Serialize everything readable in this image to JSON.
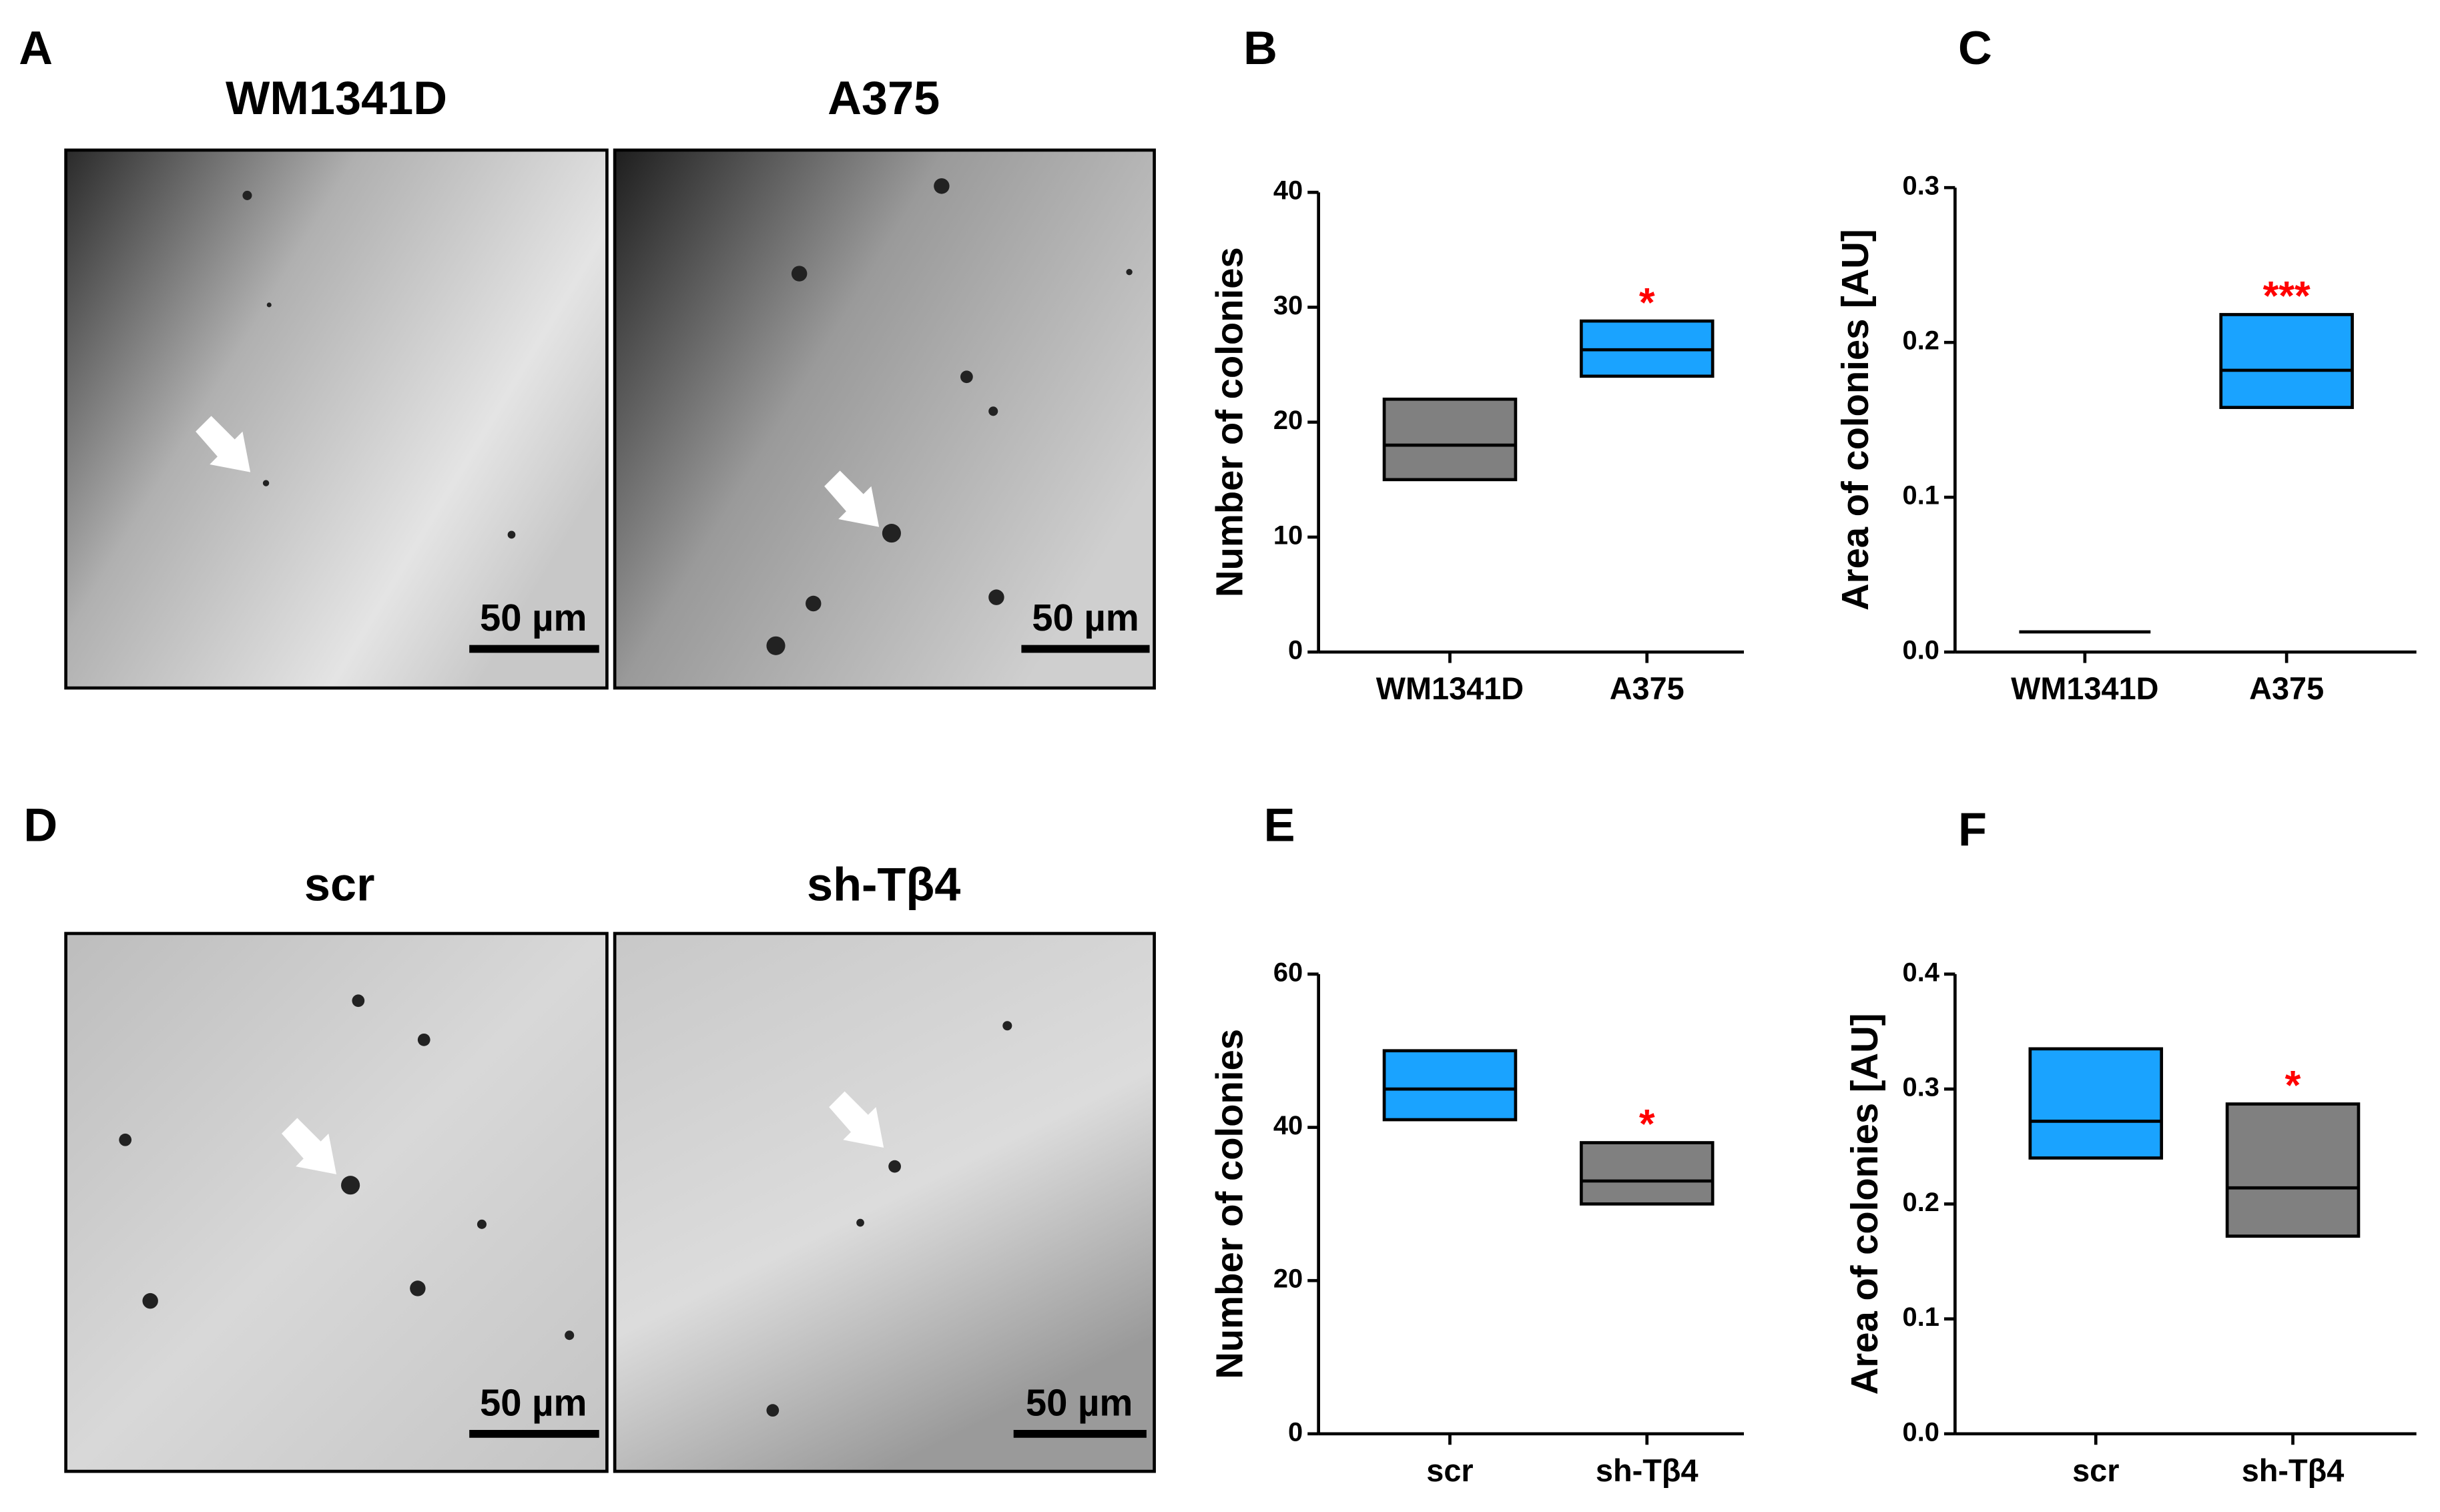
{
  "images": [
    {
      "panel_label": "A",
      "panels": [
        {
          "title": "WM1341D",
          "scale_bar": "50 µm"
        },
        {
          "title": "A375",
          "scale_bar": "50 µm"
        }
      ]
    },
    {
      "panel_label": "D",
      "panels": [
        {
          "title": "scr",
          "scale_bar": "50 µm"
        },
        {
          "title": "sh-Tβ4",
          "scale_bar": "50 µm"
        }
      ]
    }
  ],
  "chart_data": [
    {
      "type": "box",
      "panel_label": "B",
      "y_label": "Number of colonies",
      "categories": [
        "WM1341D",
        "A375"
      ],
      "low": [
        15,
        24
      ],
      "median": [
        18,
        26.3
      ],
      "high": [
        22,
        28.8
      ],
      "colors": [
        "#808080",
        "#1aa3ff"
      ],
      "annotations": [
        null,
        "*"
      ],
      "annotation_color": "#ff0000",
      "ylim": [
        0,
        40
      ],
      "yticks": [
        0,
        10,
        20,
        30,
        40
      ]
    },
    {
      "type": "box",
      "panel_label": "C",
      "y_label": "Area of colonies [AU]",
      "categories": [
        "WM1341D",
        "A375"
      ],
      "low": [
        0.013,
        0.158
      ],
      "median": [
        0.013,
        0.182
      ],
      "high": [
        0.013,
        0.218
      ],
      "colors": [
        "#808080",
        "#1aa3ff"
      ],
      "annotations": [
        null,
        "***"
      ],
      "annotation_color": "#ff0000",
      "ylim": [
        0,
        0.3
      ],
      "yticks": [
        {
          "value": 0,
          "label": "0.0"
        },
        0.1,
        0.2,
        0.3
      ]
    },
    {
      "type": "box",
      "panel_label": "E",
      "y_label": "Number of colonies",
      "categories": [
        "scr",
        "sh-Tβ4"
      ],
      "low": [
        41,
        30
      ],
      "median": [
        45,
        33
      ],
      "high": [
        50,
        38
      ],
      "colors": [
        "#1aa3ff",
        "#808080"
      ],
      "annotations": [
        null,
        "*"
      ],
      "annotation_color": "#ff0000",
      "ylim": [
        0,
        60
      ],
      "yticks": [
        0,
        20,
        40,
        60
      ]
    },
    {
      "type": "box",
      "panel_label": "F",
      "y_label": "Area of colonies [AU]",
      "categories": [
        "scr",
        "sh-Tβ4"
      ],
      "low": [
        0.24,
        0.172
      ],
      "median": [
        0.272,
        0.214
      ],
      "high": [
        0.335,
        0.287
      ],
      "colors": [
        "#1aa3ff",
        "#808080"
      ],
      "annotations": [
        null,
        "*"
      ],
      "annotation_color": "#ff0000",
      "ylim": [
        0,
        0.4
      ],
      "yticks": [
        {
          "value": 0,
          "label": "0.0"
        },
        0.1,
        0.2,
        0.3,
        0.4
      ]
    }
  ]
}
